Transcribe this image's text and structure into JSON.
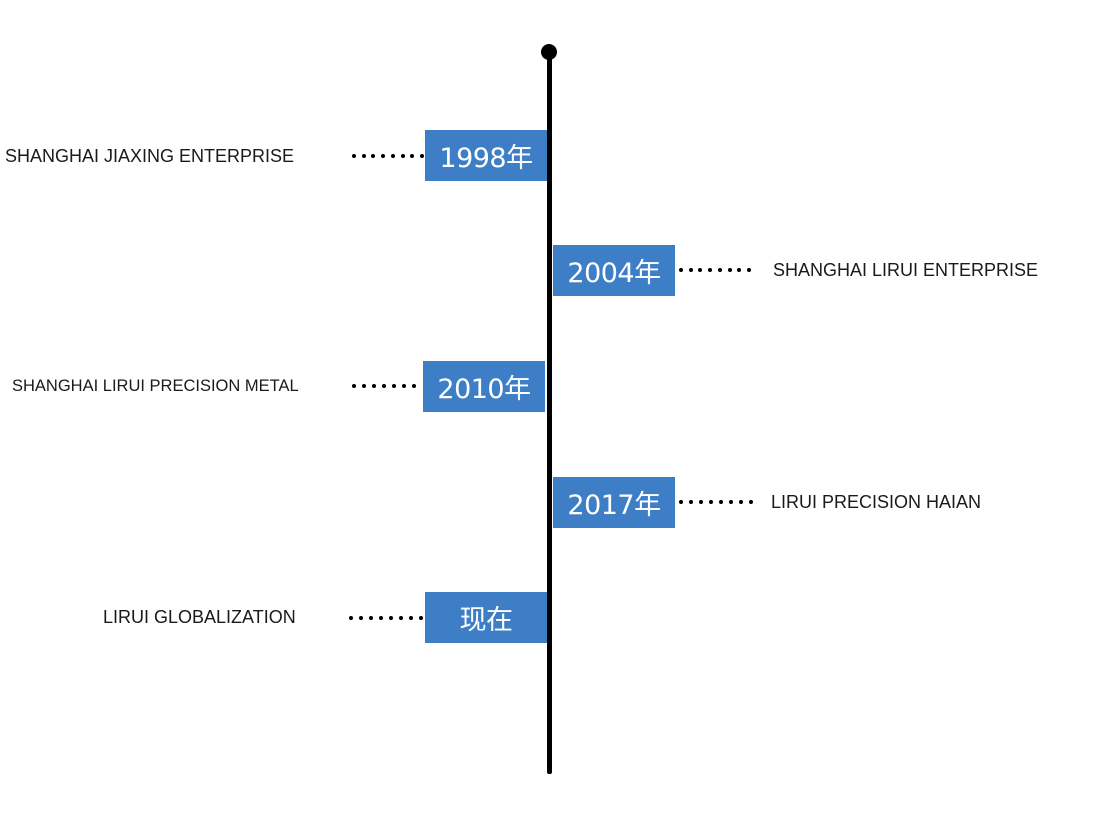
{
  "colors": {
    "box": "#3d7ec7",
    "line": "#000000"
  },
  "milestones": [
    {
      "year": "1998年",
      "event": "SHANGHAI JIAXING ENTERPRISE"
    },
    {
      "year": "2004年",
      "event": "SHANGHAI LIRUI ENTERPRISE"
    },
    {
      "year": "2010年",
      "event": "SHANGHAI LIRUI PRECISION METAL"
    },
    {
      "year": "2017年",
      "event": "LIRUI PRECISION HAIAN"
    },
    {
      "year": "现在",
      "event": "LIRUI GLOBALIZATION"
    }
  ]
}
